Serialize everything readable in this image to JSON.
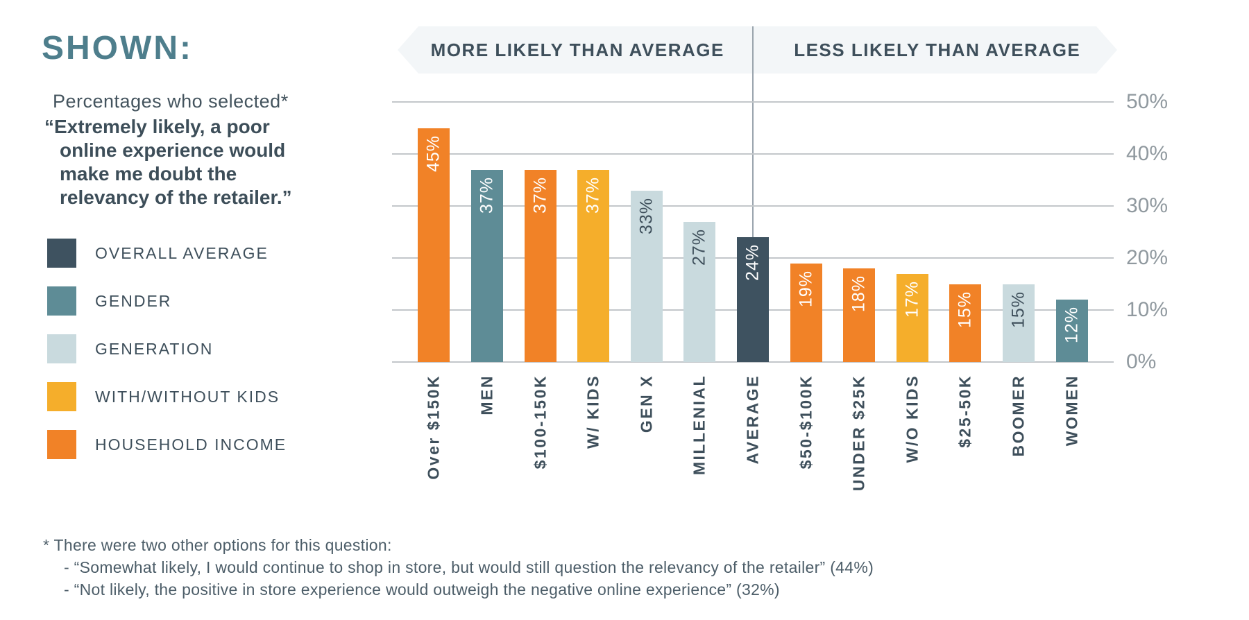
{
  "colors": {
    "title_teal": "#4e7e8c",
    "slate_text": "#3e4f5b",
    "orange": "#f18227",
    "yellow": "#f5ae2b",
    "light_blue": "#c9dade",
    "teal": "#5e8c96",
    "dark_slate": "#3e5260",
    "grid": "#c3c7ca",
    "axis_label_gray": "#90999f",
    "band_bg": "#f3f6f8",
    "divider_gray": "#9aa4ad"
  },
  "left_panel": {
    "title": "SHOWN:",
    "subtitle": "Percentages who selected*",
    "quote_lines": [
      "“Extremely likely, a poor",
      "online experience would",
      "make me doubt the",
      "relevancy of the retailer.”"
    ],
    "legend": [
      {
        "label": "OVERALL AVERAGE",
        "color": "#3e5260"
      },
      {
        "label": "GENDER",
        "color": "#5e8c96"
      },
      {
        "label": "GENERATION",
        "color": "#c9dade"
      },
      {
        "label": "WITH/WITHOUT KIDS",
        "color": "#f5ae2b"
      },
      {
        "label": "HOUSEHOLD INCOME",
        "color": "#f18227"
      }
    ]
  },
  "header": {
    "left_label": "MORE LIKELY THAN AVERAGE",
    "right_label": "LESS LIKELY THAN AVERAGE"
  },
  "chart_data": {
    "type": "bar",
    "title": "Percentages who selected “Extremely likely, a poor online experience would make me doubt the relevancy of the retailer.”",
    "unit": "%",
    "ylim": [
      0,
      50
    ],
    "y_ticks": [
      0,
      10,
      20,
      30,
      40,
      50
    ],
    "y_tick_labels": [
      "0%",
      "10%",
      "20%",
      "30%",
      "40%",
      "50%"
    ],
    "grid": true,
    "legend_position": "left",
    "categories": [
      "Over $150K",
      "MEN",
      "$100-150K",
      "W/ KIDS",
      "GEN X",
      "MILLENIAL",
      "AVERAGE",
      "$50-$100K",
      "UNDER $25K",
      "W/O KIDS",
      "$25-50K",
      "BOOMER",
      "WOMEN"
    ],
    "values": [
      45,
      37,
      37,
      37,
      33,
      27,
      24,
      19,
      18,
      17,
      15,
      15,
      12
    ],
    "bars": [
      {
        "category": "Over $150K",
        "value": 45,
        "value_label": "45%",
        "group": "HOUSEHOLD INCOME",
        "color": "#f18227"
      },
      {
        "category": "MEN",
        "value": 37,
        "value_label": "37%",
        "group": "GENDER",
        "color": "#5e8c96"
      },
      {
        "category": "$100-150K",
        "value": 37,
        "value_label": "37%",
        "group": "HOUSEHOLD INCOME",
        "color": "#f18227"
      },
      {
        "category": "W/ KIDS",
        "value": 37,
        "value_label": "37%",
        "group": "WITH/WITHOUT KIDS",
        "color": "#f5ae2b"
      },
      {
        "category": "GEN X",
        "value": 33,
        "value_label": "33%",
        "group": "GENERATION",
        "color": "#c9dade"
      },
      {
        "category": "MILLENIAL",
        "value": 27,
        "value_label": "27%",
        "group": "GENERATION",
        "color": "#c9dade"
      },
      {
        "category": "AVERAGE",
        "value": 24,
        "value_label": "24%",
        "group": "OVERALL AVERAGE",
        "color": "#3e5260"
      },
      {
        "category": "$50-$100K",
        "value": 19,
        "value_label": "19%",
        "group": "HOUSEHOLD INCOME",
        "color": "#f18227"
      },
      {
        "category": "UNDER $25K",
        "value": 18,
        "value_label": "18%",
        "group": "HOUSEHOLD INCOME",
        "color": "#f18227"
      },
      {
        "category": "W/O KIDS",
        "value": 17,
        "value_label": "17%",
        "group": "WITH/WITHOUT KIDS",
        "color": "#f5ae2b"
      },
      {
        "category": "$25-50K",
        "value": 15,
        "value_label": "15%",
        "group": "HOUSEHOLD INCOME",
        "color": "#f18227"
      },
      {
        "category": "BOOMER",
        "value": 15,
        "value_label": "15%",
        "group": "GENERATION",
        "color": "#c9dade"
      },
      {
        "category": "WOMEN",
        "value": 12,
        "value_label": "12%",
        "group": "GENDER",
        "color": "#5e8c96"
      }
    ]
  },
  "footnote": {
    "line1": "* There were two other options for this question:",
    "line2": "- “Somewhat likely, I would continue to shop in store, but would still question the relevancy of the retailer” (44%)",
    "line3": "- “Not likely, the positive in store experience would outweigh the negative online experience” (32%)"
  }
}
